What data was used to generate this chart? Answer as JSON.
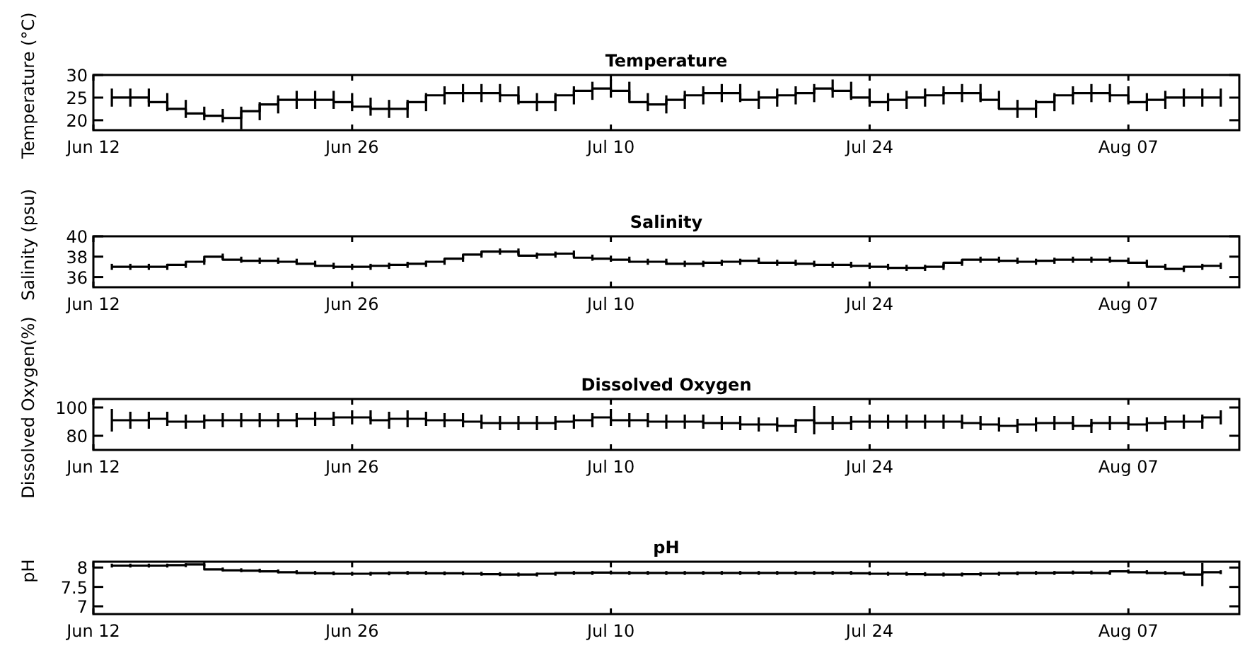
{
  "chart_data": [
    {
      "type": "step",
      "title": "Temperature",
      "ylabel": "Temperature (°C)",
      "xlim": [
        "--06-12",
        "--08-13"
      ],
      "xticks": [
        {
          "value": "--06-12",
          "label": "Jun 12"
        },
        {
          "value": "--06-26",
          "label": "Jun 26"
        },
        {
          "value": "--07-10",
          "label": "Jul 10"
        },
        {
          "value": "--07-24",
          "label": "Jul 24"
        },
        {
          "value": "--08-07",
          "label": "Aug 07"
        }
      ],
      "ylim": [
        17.8,
        30
      ],
      "yticks": [
        20,
        25,
        30
      ],
      "x": [
        "--06-13",
        "--06-14",
        "--06-15",
        "--06-16",
        "--06-17",
        "--06-18",
        "--06-19",
        "--06-20",
        "--06-21",
        "--06-22",
        "--06-23",
        "--06-24",
        "--06-25",
        "--06-26",
        "--06-27",
        "--06-28",
        "--06-29",
        "--06-30",
        "--07-01",
        "--07-02",
        "--07-03",
        "--07-04",
        "--07-05",
        "--07-06",
        "--07-07",
        "--07-08",
        "--07-09",
        "--07-10",
        "--07-11",
        "--07-12",
        "--07-13",
        "--07-14",
        "--07-15",
        "--07-16",
        "--07-17",
        "--07-18",
        "--07-19",
        "--07-20",
        "--07-21",
        "--07-22",
        "--07-23",
        "--07-24",
        "--07-25",
        "--07-26",
        "--07-27",
        "--07-28",
        "--07-29",
        "--07-30",
        "--07-31",
        "--08-01",
        "--08-02",
        "--08-03",
        "--08-04",
        "--08-05",
        "--08-06",
        "--08-07",
        "--08-08",
        "--08-09",
        "--08-10",
        "--08-11",
        "--08-12"
      ],
      "series": [
        {
          "color": "#000000",
          "values": [
            25,
            25,
            25,
            24,
            22.5,
            21.5,
            21,
            20.5,
            22,
            23.5,
            24.5,
            24.5,
            24.5,
            24,
            23,
            22.5,
            22.5,
            24,
            25.5,
            26,
            26,
            26,
            25.5,
            24,
            24,
            25.5,
            26.5,
            27,
            26.5,
            24,
            23.5,
            24.5,
            25.5,
            26,
            26,
            24.5,
            25,
            25.5,
            26,
            27,
            26.5,
            25,
            24,
            24.5,
            25,
            25.5,
            26,
            26,
            24.5,
            22.5,
            22.5,
            24,
            25.5,
            26,
            26,
            25.5,
            24,
            24.5,
            25,
            25,
            25
          ],
          "errors": [
            2,
            2,
            2,
            2,
            2,
            1.5,
            1.5,
            2.5,
            2,
            2,
            2,
            2,
            2,
            2,
            2,
            2,
            2,
            2,
            2,
            2,
            2,
            2,
            2,
            2,
            2,
            2,
            2,
            2,
            2,
            2,
            2,
            2,
            2,
            2,
            2,
            2,
            2,
            2,
            2,
            2,
            2,
            2,
            2,
            2,
            2,
            2,
            2,
            2,
            2,
            2,
            2,
            2,
            2,
            2,
            2,
            2,
            2,
            2,
            2,
            2,
            2
          ]
        }
      ]
    },
    {
      "type": "step",
      "title": "Salinity",
      "ylabel": "Salinity (psu)",
      "xlim": [
        "--06-12",
        "--08-13"
      ],
      "xticks": [
        {
          "value": "--06-12",
          "label": "Jun 12"
        },
        {
          "value": "--06-26",
          "label": "Jun 26"
        },
        {
          "value": "--07-10",
          "label": "Jul 10"
        },
        {
          "value": "--07-24",
          "label": "Jul 24"
        },
        {
          "value": "--08-07",
          "label": "Aug 07"
        }
      ],
      "ylim": [
        35,
        40
      ],
      "yticks": [
        36,
        38,
        40
      ],
      "x": [
        "--06-13",
        "--06-14",
        "--06-15",
        "--06-16",
        "--06-17",
        "--06-18",
        "--06-19",
        "--06-20",
        "--06-21",
        "--06-22",
        "--06-23",
        "--06-24",
        "--06-25",
        "--06-26",
        "--06-27",
        "--06-28",
        "--06-29",
        "--06-30",
        "--07-01",
        "--07-02",
        "--07-03",
        "--07-04",
        "--07-05",
        "--07-06",
        "--07-07",
        "--07-08",
        "--07-09",
        "--07-10",
        "--07-11",
        "--07-12",
        "--07-13",
        "--07-14",
        "--07-15",
        "--07-16",
        "--07-17",
        "--07-18",
        "--07-19",
        "--07-20",
        "--07-21",
        "--07-22",
        "--07-23",
        "--07-24",
        "--07-25",
        "--07-26",
        "--07-27",
        "--07-28",
        "--07-29",
        "--07-30",
        "--07-31",
        "--08-01",
        "--08-02",
        "--08-03",
        "--08-04",
        "--08-05",
        "--08-06",
        "--08-07",
        "--08-08",
        "--08-09",
        "--08-10",
        "--08-11",
        "--08-12"
      ],
      "series": [
        {
          "color": "#000000",
          "values": [
            37,
            37,
            37,
            37,
            37.2,
            37.5,
            38,
            37.7,
            37.6,
            37.6,
            37.5,
            37.3,
            37.1,
            37,
            37,
            37.1,
            37.2,
            37.3,
            37.5,
            37.8,
            38.2,
            38.5,
            38.5,
            38.1,
            38.2,
            38.3,
            37.9,
            37.8,
            37.7,
            37.5,
            37.5,
            37.3,
            37.3,
            37.4,
            37.5,
            37.6,
            37.4,
            37.4,
            37.3,
            37.2,
            37.2,
            37.1,
            37,
            36.9,
            36.9,
            37,
            37.4,
            37.7,
            37.7,
            37.6,
            37.5,
            37.6,
            37.7,
            37.7,
            37.7,
            37.6,
            37.4,
            37,
            36.8,
            37,
            37.1
          ],
          "errors": [
            0.3,
            0.3,
            0.3,
            0.3,
            0.3,
            0.3,
            0.3,
            0.3,
            0.3,
            0.3,
            0.3,
            0.3,
            0.3,
            0.3,
            0.3,
            0.3,
            0.3,
            0.3,
            0.3,
            0.3,
            0.3,
            0.3,
            0.3,
            0.3,
            0.3,
            0.3,
            0.3,
            0.3,
            0.3,
            0.3,
            0.3,
            0.3,
            0.3,
            0.3,
            0.3,
            0.3,
            0.3,
            0.3,
            0.3,
            0.3,
            0.3,
            0.3,
            0.3,
            0.3,
            0.3,
            0.3,
            0.3,
            0.3,
            0.3,
            0.3,
            0.3,
            0.3,
            0.3,
            0.3,
            0.3,
            0.3,
            0.3,
            0.3,
            0.3,
            0.3,
            0.3
          ]
        }
      ]
    },
    {
      "type": "step",
      "title": "Dissolved Oxygen",
      "ylabel": "Dissolved Oxygen(%)",
      "xlim": [
        "--06-12",
        "--08-13"
      ],
      "xticks": [
        {
          "value": "--06-12",
          "label": "Jun 12"
        },
        {
          "value": "--06-26",
          "label": "Jun 26"
        },
        {
          "value": "--07-10",
          "label": "Jul 10"
        },
        {
          "value": "--07-24",
          "label": "Jul 24"
        },
        {
          "value": "--08-07",
          "label": "Aug 07"
        }
      ],
      "ylim": [
        70,
        106
      ],
      "yticks": [
        80,
        100
      ],
      "x": [
        "--06-13",
        "--06-14",
        "--06-15",
        "--06-16",
        "--06-17",
        "--06-18",
        "--06-19",
        "--06-20",
        "--06-21",
        "--06-22",
        "--06-23",
        "--06-24",
        "--06-25",
        "--06-26",
        "--06-27",
        "--06-28",
        "--06-29",
        "--06-30",
        "--07-01",
        "--07-02",
        "--07-03",
        "--07-04",
        "--07-05",
        "--07-06",
        "--07-07",
        "--07-08",
        "--07-09",
        "--07-10",
        "--07-11",
        "--07-12",
        "--07-13",
        "--07-14",
        "--07-15",
        "--07-16",
        "--07-17",
        "--07-18",
        "--07-19",
        "--07-20",
        "--07-21",
        "--07-22",
        "--07-23",
        "--07-24",
        "--07-25",
        "--07-26",
        "--07-27",
        "--07-28",
        "--07-29",
        "--07-30",
        "--07-31",
        "--08-01",
        "--08-02",
        "--08-03",
        "--08-04",
        "--08-05",
        "--08-06",
        "--08-07",
        "--08-08",
        "--08-09",
        "--08-10",
        "--08-11",
        "--08-12"
      ],
      "series": [
        {
          "color": "#000000",
          "values": [
            91,
            91,
            91,
            92,
            90,
            90,
            91,
            91,
            91,
            91,
            91,
            92,
            92,
            93,
            93,
            91,
            92,
            92,
            91,
            91,
            90,
            89,
            89,
            89,
            89,
            90,
            91,
            93,
            91,
            91,
            90,
            90,
            90,
            89,
            89,
            88,
            88,
            87,
            91,
            89,
            89,
            90,
            90,
            90,
            90,
            90,
            90,
            89,
            88,
            87,
            88,
            89,
            89,
            87,
            89,
            89,
            88,
            89,
            90,
            90,
            93
          ],
          "errors": [
            8,
            6,
            6,
            5,
            5,
            5,
            5,
            5,
            5,
            5,
            5,
            5,
            5,
            5,
            5,
            6,
            6,
            5,
            5,
            5,
            5,
            5,
            5,
            5,
            5,
            5,
            5,
            6,
            5,
            5,
            5,
            5,
            5,
            5,
            5,
            5,
            5,
            5,
            10,
            5,
            5,
            5,
            5,
            5,
            5,
            5,
            5,
            5,
            5,
            5,
            5,
            5,
            5,
            5,
            5,
            5,
            5,
            5,
            5,
            5,
            5
          ]
        }
      ]
    },
    {
      "type": "step",
      "title": "pH",
      "ylabel": "pH",
      "xlim": [
        "--06-12",
        "--08-13"
      ],
      "xticks": [
        {
          "value": "--06-12",
          "label": "Jun 12"
        },
        {
          "value": "--06-26",
          "label": "Jun 26"
        },
        {
          "value": "--07-10",
          "label": "Jul 10"
        },
        {
          "value": "--07-24",
          "label": "Jul 24"
        },
        {
          "value": "--08-07",
          "label": "Aug 07"
        }
      ],
      "ylim": [
        6.8,
        8.15
      ],
      "yticks": [
        7,
        7.5,
        8
      ],
      "x": [
        "--06-13",
        "--06-14",
        "--06-15",
        "--06-16",
        "--06-17",
        "--06-18",
        "--06-19",
        "--06-20",
        "--06-21",
        "--06-22",
        "--06-23",
        "--06-24",
        "--06-25",
        "--06-26",
        "--06-27",
        "--06-28",
        "--06-29",
        "--06-30",
        "--07-01",
        "--07-02",
        "--07-03",
        "--07-04",
        "--07-05",
        "--07-06",
        "--07-07",
        "--07-08",
        "--07-09",
        "--07-10",
        "--07-11",
        "--07-12",
        "--07-13",
        "--07-14",
        "--07-15",
        "--07-16",
        "--07-17",
        "--07-18",
        "--07-19",
        "--07-20",
        "--07-21",
        "--07-22",
        "--07-23",
        "--07-24",
        "--07-25",
        "--07-26",
        "--07-27",
        "--07-28",
        "--07-29",
        "--07-30",
        "--07-31",
        "--08-01",
        "--08-02",
        "--08-03",
        "--08-04",
        "--08-05",
        "--08-06",
        "--08-07",
        "--08-08",
        "--08-09",
        "--08-10",
        "--08-11",
        "--08-12"
      ],
      "series": [
        {
          "color": "#000000",
          "values": [
            8.05,
            8.05,
            8.05,
            8.05,
            8.06,
            8.08,
            7.95,
            7.93,
            7.92,
            7.9,
            7.88,
            7.86,
            7.85,
            7.84,
            7.84,
            7.85,
            7.86,
            7.86,
            7.85,
            7.85,
            7.84,
            7.83,
            7.82,
            7.82,
            7.84,
            7.86,
            7.86,
            7.87,
            7.86,
            7.86,
            7.86,
            7.86,
            7.86,
            7.86,
            7.86,
            7.86,
            7.86,
            7.86,
            7.86,
            7.86,
            7.86,
            7.85,
            7.84,
            7.84,
            7.83,
            7.82,
            7.82,
            7.83,
            7.84,
            7.85,
            7.86,
            7.86,
            7.87,
            7.87,
            7.86,
            7.9,
            7.88,
            7.86,
            7.85,
            7.82,
            7.88
          ],
          "errors": [
            0.05,
            0.05,
            0.05,
            0.05,
            0.05,
            0.05,
            0.05,
            0.05,
            0.05,
            0.05,
            0.05,
            0.05,
            0.05,
            0.05,
            0.05,
            0.05,
            0.05,
            0.05,
            0.05,
            0.05,
            0.05,
            0.05,
            0.05,
            0.05,
            0.05,
            0.05,
            0.05,
            0.05,
            0.05,
            0.05,
            0.05,
            0.05,
            0.05,
            0.05,
            0.05,
            0.05,
            0.05,
            0.05,
            0.05,
            0.05,
            0.05,
            0.05,
            0.05,
            0.05,
            0.05,
            0.05,
            0.05,
            0.05,
            0.05,
            0.05,
            0.05,
            0.05,
            0.05,
            0.05,
            0.05,
            0.05,
            0.05,
            0.05,
            0.05,
            0.3,
            0.05
          ]
        }
      ]
    }
  ]
}
